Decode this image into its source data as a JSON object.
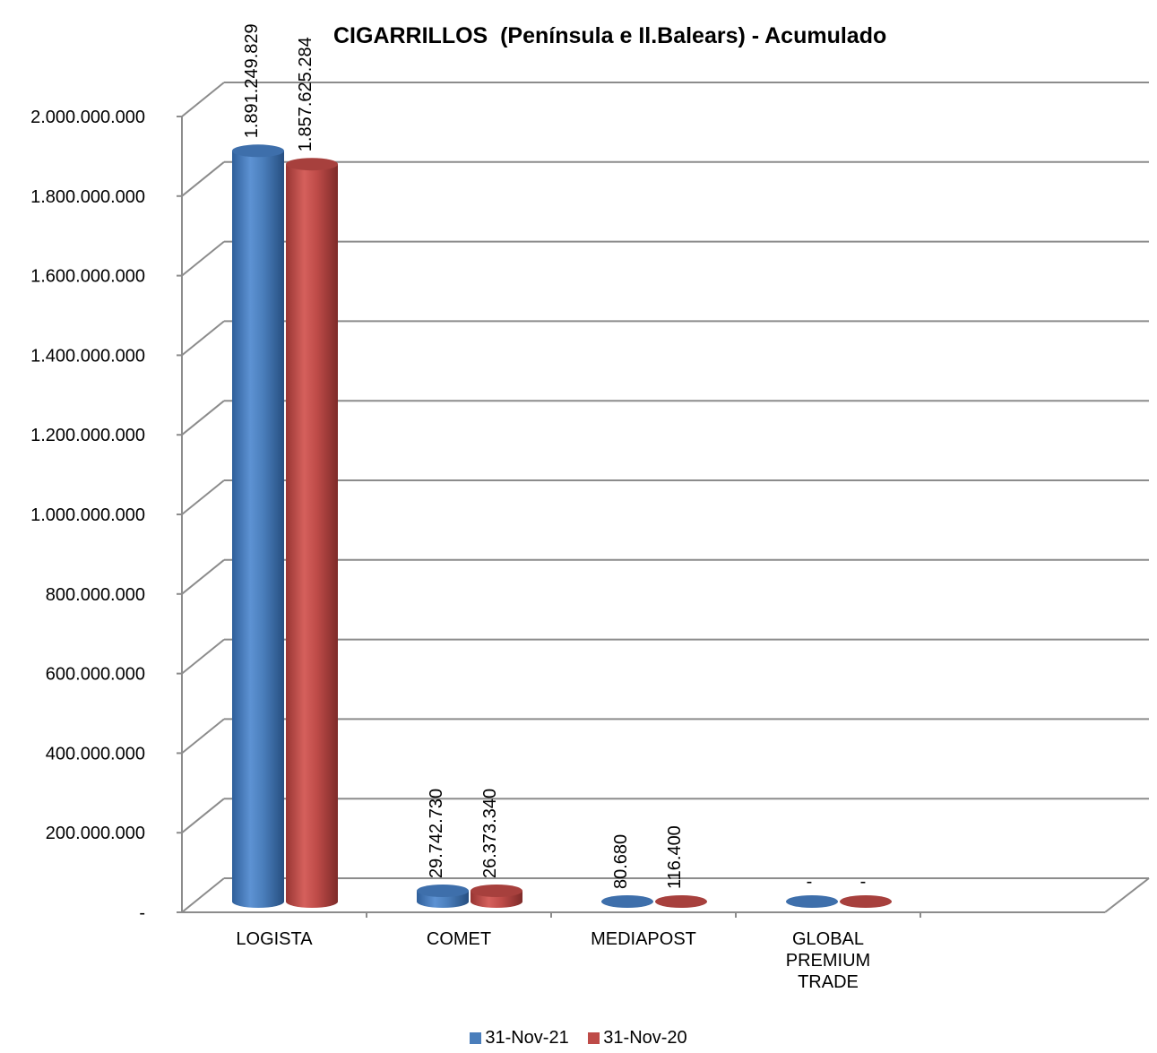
{
  "chart_data": {
    "type": "bar",
    "title": "CIGARRILLOS  (Península e Il.Balears) - Acumulado",
    "categories": [
      "LOGISTA",
      "COMET",
      "MEDIAPOST",
      "GLOBAL\nPREMIUM\nTRADE"
    ],
    "series": [
      {
        "name": "31-Nov-21",
        "values": [
          1891249829,
          29742730,
          80680,
          0
        ],
        "labels": [
          "1.891.249.829",
          "29.742.730",
          "80.680",
          "-"
        ],
        "color": "#4a7ebb"
      },
      {
        "name": "31-Nov-20",
        "values": [
          1857625284,
          26373340,
          116400,
          0
        ],
        "labels": [
          "1.857.625.284",
          "26.373.340",
          "116.400",
          "-"
        ],
        "color": "#be4b48"
      }
    ],
    "yticks": [
      "-",
      "200.000.000",
      "400.000.000",
      "600.000.000",
      "800.000.000",
      "1.000.000.000",
      "1.200.000.000",
      "1.400.000.000",
      "1.600.000.000",
      "1.800.000.000",
      "2.000.000.000"
    ],
    "ylim": [
      0,
      2000000000
    ],
    "grid": true,
    "legend_position": "bottom"
  }
}
